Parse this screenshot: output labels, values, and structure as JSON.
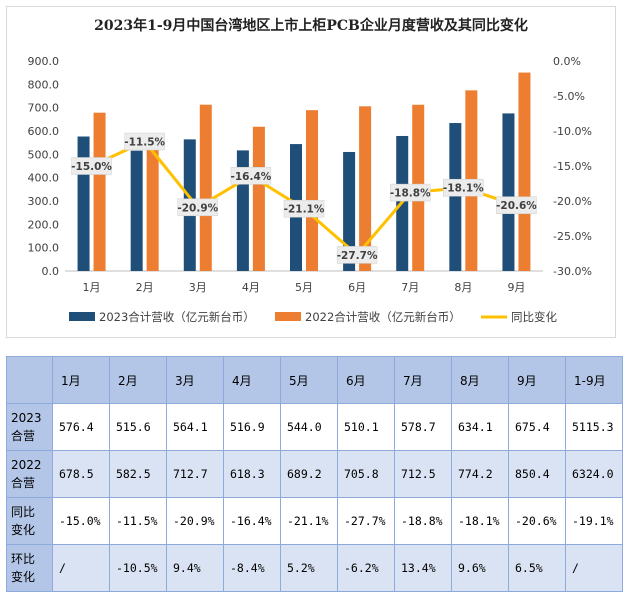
{
  "chart_data": {
    "type": "bar",
    "title": "2023年1-9月中国台湾地区上市上柜PCB企业月度营收及其同比变化",
    "categories": [
      "1月",
      "2月",
      "3月",
      "4月",
      "5月",
      "6月",
      "7月",
      "8月",
      "9月"
    ],
    "series": [
      {
        "name": "2023合计营收（亿元新台币）",
        "type": "bar",
        "axis": "left",
        "color": "#1f4e79",
        "values": [
          576.4,
          515.6,
          564.1,
          516.9,
          544.0,
          510.1,
          578.7,
          634.1,
          675.4
        ]
      },
      {
        "name": "2022合计营收（亿元新台币）",
        "type": "bar",
        "axis": "left",
        "color": "#ed7d31",
        "values": [
          678.5,
          582.5,
          712.7,
          618.3,
          689.2,
          705.8,
          712.5,
          774.2,
          850.4
        ]
      },
      {
        "name": "同比变化",
        "type": "line",
        "axis": "right",
        "color": "#ffc000",
        "values": [
          -15.0,
          -11.5,
          -20.9,
          -16.4,
          -21.1,
          -27.7,
          -18.8,
          -18.1,
          -20.6
        ],
        "labels": [
          "-15.0%",
          "-11.5%",
          "-20.9%",
          "-16.4%",
          "-21.1%",
          "-27.7%",
          "-18.8%",
          "-18.1%",
          "-20.6%"
        ]
      }
    ],
    "y_left": {
      "min": 0,
      "max": 900,
      "step": 100,
      "ticks": [
        "0.0",
        "100.0",
        "200.0",
        "300.0",
        "400.0",
        "500.0",
        "600.0",
        "700.0",
        "800.0",
        "900.0"
      ]
    },
    "y_right": {
      "min": -30,
      "max": 0,
      "step": 5,
      "ticks": [
        "-30.0%",
        "-25.0%",
        "-20.0%",
        "-15.0%",
        "-10.0%",
        "-5.0%",
        "0.0%"
      ]
    },
    "legend_position": "bottom",
    "grid": false
  },
  "table": {
    "header": [
      "1月",
      "2月",
      "3月",
      "4月",
      "5月",
      "6月",
      "7月",
      "8月",
      "9月",
      "1-9月"
    ],
    "rows": [
      {
        "label_lines": [
          "2023",
          "合营"
        ],
        "cells": [
          "576.4",
          "515.6",
          "564.1",
          "516.9",
          "544.0",
          "510.1",
          "578.7",
          "634.1",
          "675.4",
          "5115.3"
        ]
      },
      {
        "label_lines": [
          "2022",
          "合营"
        ],
        "cells": [
          "678.5",
          "582.5",
          "712.7",
          "618.3",
          "689.2",
          "705.8",
          "712.5",
          "774.2",
          "850.4",
          "6324.0"
        ]
      },
      {
        "label_lines": [
          "同比",
          "变化"
        ],
        "cells": [
          "-15.0%",
          "-11.5%",
          "-20.9%",
          "-16.4%",
          "-21.1%",
          "-27.7%",
          "-18.8%",
          "-18.1%",
          "-20.6%",
          "-19.1%"
        ]
      },
      {
        "label_lines": [
          "环比",
          "变化"
        ],
        "cells": [
          "/",
          "-10.5%",
          "9.4%",
          "-8.4%",
          "5.2%",
          "-6.2%",
          "13.4%",
          "9.6%",
          "6.5%",
          "/"
        ]
      }
    ]
  }
}
